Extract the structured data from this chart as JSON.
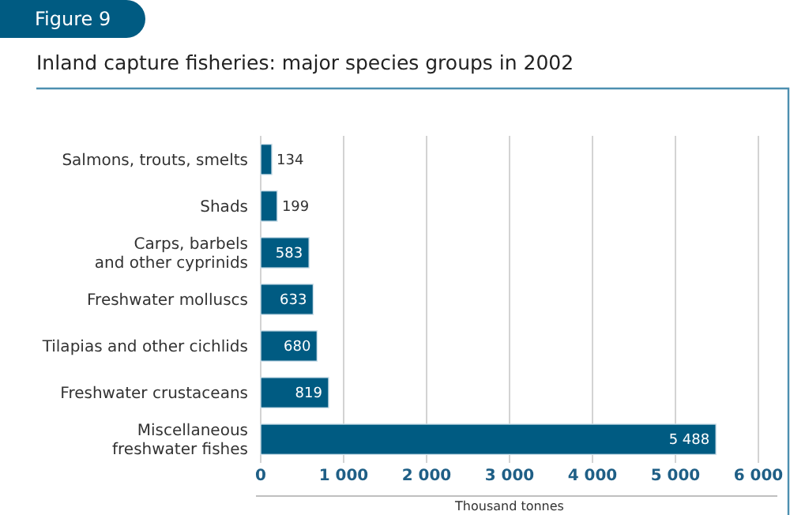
{
  "chart_data": {
    "type": "bar",
    "orientation": "horizontal",
    "title": "Inland capture fisheries: major species groups in 2002",
    "annotations": [
      "Figure 9"
    ],
    "categories": [
      "Salmons, trouts, smelts",
      "Shads",
      "Carps, barbels\nand other cyprinids",
      "Freshwater molluscs",
      "Tilapias and other cichlids",
      "Freshwater crustaceans",
      "Miscellaneous\nfreshwater fishes"
    ],
    "values": [
      134,
      199,
      583,
      633,
      680,
      819,
      5488
    ],
    "value_labels": [
      "134",
      "199",
      "583",
      "633",
      "680",
      "819",
      "5 488"
    ],
    "color": "#005b82",
    "xlabel": "Thousand tonnes",
    "xlim": [
      0,
      6000
    ],
    "xticks": [
      0,
      {
        "value": 1000,
        "label": "1 000"
      },
      {
        "value": 2000,
        "label": "2 000"
      },
      {
        "value": 3000,
        "label": "3 000"
      },
      {
        "value": 4000,
        "label": "4 000"
      },
      {
        "value": 5000,
        "label": "5 000"
      },
      {
        "value": 6000,
        "label": "6 000"
      }
    ],
    "grid": "x"
  }
}
